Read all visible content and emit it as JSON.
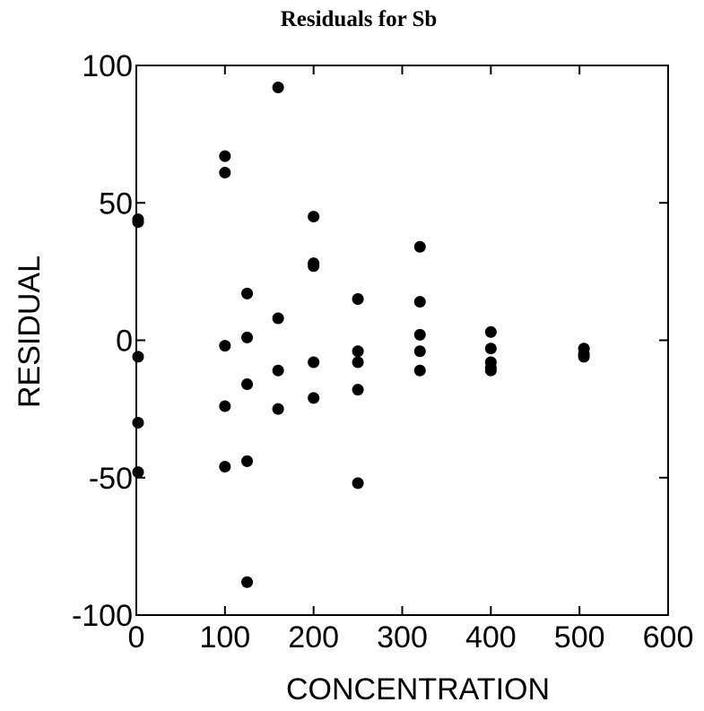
{
  "chart_data": {
    "type": "scatter",
    "title": "Residuals for Sb",
    "xlabel": "CONCENTRATION",
    "ylabel": "RESIDUAL",
    "xlim": [
      0,
      600
    ],
    "ylim": [
      -100,
      100
    ],
    "xticks": [
      0,
      100,
      200,
      300,
      400,
      500,
      600
    ],
    "yticks": [
      -100,
      -50,
      0,
      50,
      100
    ],
    "xtick_labels": [
      "0",
      "100",
      "200",
      "300",
      "400",
      "500",
      "600"
    ],
    "ytick_labels": [
      "-100",
      "-50",
      "0",
      "50",
      "100"
    ],
    "grid": false,
    "marker_color": "#000000",
    "series": [
      {
        "points": [
          [
            2,
            44
          ],
          [
            2,
            43
          ],
          [
            2,
            -6
          ],
          [
            2,
            -30
          ],
          [
            2,
            -48
          ],
          [
            100,
            67
          ],
          [
            100,
            61
          ],
          [
            100,
            -2
          ],
          [
            100,
            -24
          ],
          [
            100,
            -46
          ],
          [
            125,
            17
          ],
          [
            125,
            1
          ],
          [
            125,
            -16
          ],
          [
            125,
            -44
          ],
          [
            125,
            -88
          ],
          [
            160,
            92
          ],
          [
            160,
            8
          ],
          [
            160,
            -11
          ],
          [
            160,
            -25
          ],
          [
            200,
            45
          ],
          [
            200,
            28
          ],
          [
            200,
            27
          ],
          [
            200,
            -8
          ],
          [
            200,
            -21
          ],
          [
            250,
            15
          ],
          [
            250,
            -4
          ],
          [
            250,
            -8
          ],
          [
            250,
            -18
          ],
          [
            250,
            -52
          ],
          [
            320,
            34
          ],
          [
            320,
            14
          ],
          [
            320,
            2
          ],
          [
            320,
            -4
          ],
          [
            320,
            -11
          ],
          [
            400,
            3
          ],
          [
            400,
            -3
          ],
          [
            400,
            -8
          ],
          [
            400,
            -10
          ],
          [
            400,
            -11
          ],
          [
            505,
            -3
          ],
          [
            505,
            -5
          ],
          [
            505,
            -6
          ]
        ]
      }
    ]
  }
}
